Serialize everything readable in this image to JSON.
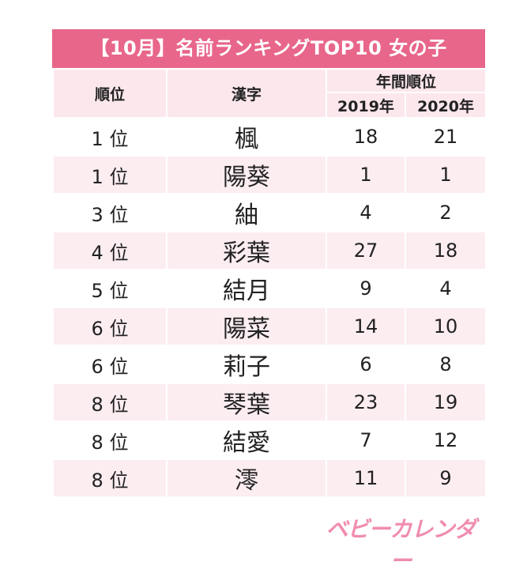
{
  "title": "【10月】名前ランキングTOP10 女の子",
  "table": {
    "headers": {
      "rank": "順位",
      "kanji": "漢字",
      "annual_rank": "年間順位",
      "year_2019": "2019年",
      "year_2020": "2020年"
    },
    "rows": [
      {
        "rank": "1 位",
        "kanji": "楓",
        "y2019": "18",
        "y2020": "21"
      },
      {
        "rank": "1 位",
        "kanji": "陽葵",
        "y2019": "1",
        "y2020": "1"
      },
      {
        "rank": "3 位",
        "kanji": "紬",
        "y2019": "4",
        "y2020": "2"
      },
      {
        "rank": "4 位",
        "kanji": "彩葉",
        "y2019": "27",
        "y2020": "18"
      },
      {
        "rank": "5 位",
        "kanji": "結月",
        "y2019": "9",
        "y2020": "4"
      },
      {
        "rank": "6 位",
        "kanji": "陽菜",
        "y2019": "14",
        "y2020": "10"
      },
      {
        "rank": "6 位",
        "kanji": "莉子",
        "y2019": "6",
        "y2020": "8"
      },
      {
        "rank": "8 位",
        "kanji": "琴葉",
        "y2019": "23",
        "y2020": "19"
      },
      {
        "rank": "8 位",
        "kanji": "結愛",
        "y2019": "7",
        "y2020": "12"
      },
      {
        "rank": "8 位",
        "kanji": "澪",
        "y2019": "11",
        "y2020": "9"
      }
    ]
  },
  "logo": "ベビーカレンダー",
  "colors": {
    "title_bg": "#e8668a",
    "header_bg": "#fbe7ec",
    "row_alt_bg": "#fcedf1",
    "logo": "#f08cb0"
  }
}
